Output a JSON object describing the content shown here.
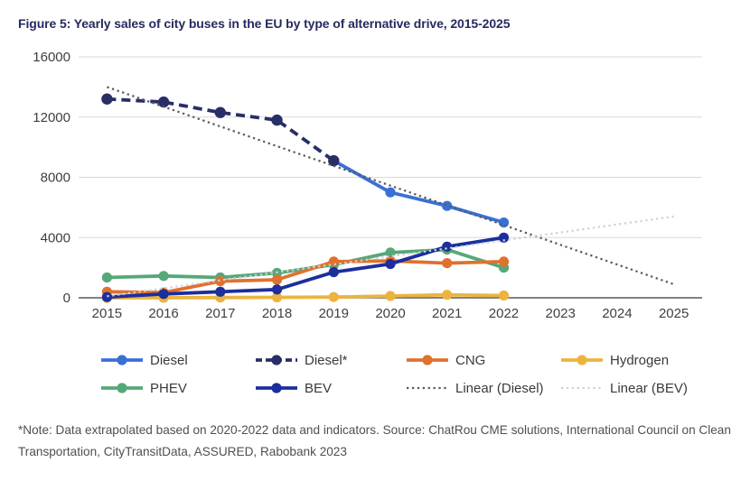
{
  "title": "Figure 5: Yearly sales of city buses in the EU by type of alternative drive, 2015-2025",
  "footnote": "*Note: Data extrapolated based on 2020-2022 data and indicators. Source: ChatRou CME solutions, International Council on Clean Transportation, CityTransitData, ASSURED, Rabobank 2023",
  "colors": {
    "title": "#262a5e",
    "gridline": "#d9d9d9",
    "axis_line": "#595959",
    "tick_label": "#3f3f3f"
  },
  "chart_data": {
    "type": "line",
    "title": "Figure 5: Yearly sales of city buses in the EU by type of alternative drive, 2015-2025",
    "x": [
      2015,
      2016,
      2017,
      2018,
      2019,
      2020,
      2021,
      2022,
      2023,
      2024,
      2025
    ],
    "xlabel": "",
    "ylabel": "",
    "ylim": [
      0,
      16000
    ],
    "ytick_interval": 4000,
    "grid": true,
    "legend_position": "bottom",
    "series": [
      {
        "name": "Diesel",
        "color": "#3a70d6",
        "style": "solid",
        "markers": true,
        "values": [
          null,
          null,
          null,
          null,
          9100,
          7000,
          6100,
          5000,
          null,
          null,
          null
        ]
      },
      {
        "name": "Diesel*",
        "color": "#282e66",
        "style": "dashed",
        "markers": true,
        "values": [
          13200,
          13000,
          12300,
          11800,
          9100,
          null,
          null,
          null,
          null,
          null,
          null
        ]
      },
      {
        "name": "CNG",
        "color": "#e0712e",
        "style": "solid",
        "markers": true,
        "values": [
          400,
          350,
          1100,
          1200,
          2400,
          2450,
          2300,
          2400,
          null,
          null,
          null
        ]
      },
      {
        "name": "Hydrogen",
        "color": "#ecb43f",
        "style": "solid",
        "markers": true,
        "values": [
          0,
          0,
          20,
          30,
          50,
          120,
          200,
          150,
          null,
          null,
          null
        ]
      },
      {
        "name": "PHEV",
        "color": "#56a878",
        "style": "solid",
        "markers": true,
        "values": [
          1350,
          1450,
          1350,
          1650,
          2200,
          3000,
          3200,
          2000,
          null,
          null,
          null
        ]
      },
      {
        "name": "BEV",
        "color": "#1c2f9c",
        "style": "solid",
        "markers": true,
        "values": [
          50,
          250,
          400,
          550,
          1700,
          2250,
          3400,
          4000,
          null,
          null,
          null
        ]
      },
      {
        "name": "Linear (Diesel)",
        "color": "#5a5a5a",
        "style": "dotted",
        "markers": false,
        "values": [
          14000,
          12690,
          11380,
          10070,
          8760,
          7450,
          6140,
          4830,
          3520,
          2210,
          900
        ]
      },
      {
        "name": "Linear (BEV)",
        "color": "#cdd2d9",
        "style": "dotted",
        "markers": false,
        "values": [
          100,
          630,
          1160,
          1690,
          2220,
          2750,
          3280,
          3810,
          4340,
          4870,
          5400
        ]
      }
    ],
    "draw_order": [
      "Diesel",
      "Diesel*",
      "PHEV",
      "CNG",
      "Hydrogen",
      "BEV",
      "Linear (Diesel)",
      "Linear (BEV)"
    ],
    "legend_order": [
      "Diesel",
      "Diesel*",
      "CNG",
      "Hydrogen",
      "PHEV",
      "BEV",
      "Linear (Diesel)",
      "Linear (BEV)"
    ]
  }
}
